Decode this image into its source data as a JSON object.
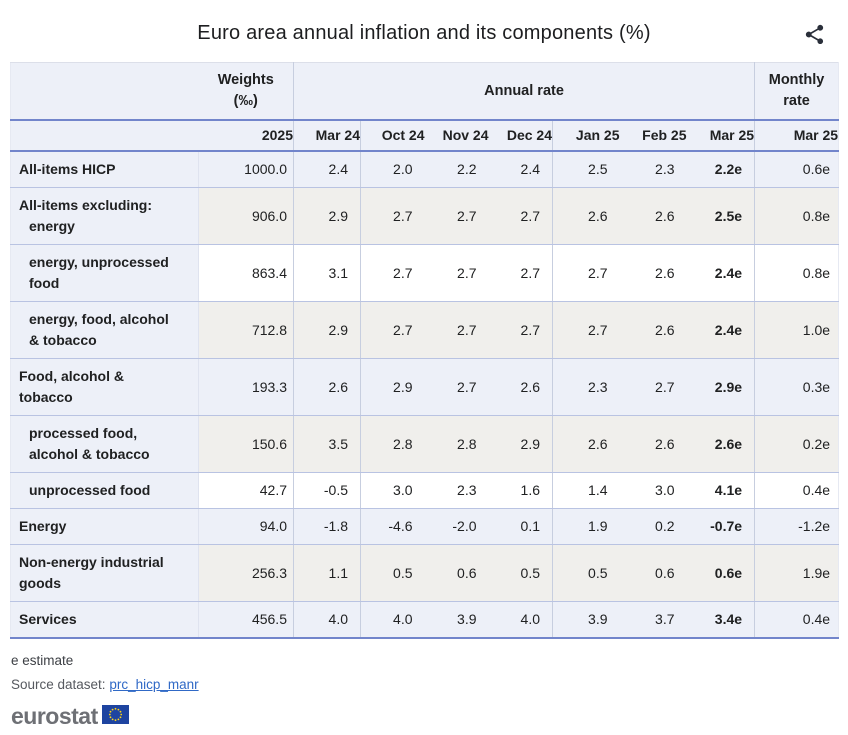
{
  "title": "Euro area annual inflation and its components (%)",
  "icons": {
    "share": "share-icon",
    "eu_flag": "eu-flag-icon"
  },
  "colors": {
    "accent_blue_border": "#7285cb",
    "row_separator": "#b9c3e2",
    "header_bg": "#edf0f8",
    "stripe_gray": "#f0efec",
    "link_blue": "#3069c6",
    "logo_gray": "#6e7075",
    "flag_blue": "#1e44a0",
    "flag_star_yellow": "#ffd617"
  },
  "table": {
    "headers": {
      "weights_line1": "Weights",
      "weights_line2": "(‰)",
      "annual": "Annual rate",
      "monthly_line1": "Monthly",
      "monthly_line2": "rate"
    }
  },
  "chart_data": {
    "type": "table",
    "title": "Euro area annual inflation and its components (%)",
    "weights_year": "2025",
    "annual_periods": [
      "Mar 24",
      "Oct 24",
      "Nov 24",
      "Dec 24",
      "Jan 25",
      "Feb 25",
      "Mar 25"
    ],
    "monthly_period": "Mar 25",
    "rows": [
      {
        "label": "All-items HICP",
        "label_lines": [
          {
            "text": "All-items HICP",
            "indent": false
          }
        ],
        "weight": "1000.0",
        "annual": [
          "2.4",
          "2.0",
          "2.2",
          "2.4",
          "2.5",
          "2.3",
          "2.2e"
        ],
        "monthly": "0.6e",
        "tone": "blue"
      },
      {
        "label": "All-items excluding: energy",
        "label_lines": [
          {
            "text": "All-items excluding:",
            "indent": false
          },
          {
            "text": "energy",
            "indent": true
          }
        ],
        "weight": "906.0",
        "annual": [
          "2.9",
          "2.7",
          "2.7",
          "2.7",
          "2.6",
          "2.6",
          "2.5e"
        ],
        "monthly": "0.8e",
        "tone": "gray"
      },
      {
        "label": "energy, unprocessed food",
        "label_lines": [
          {
            "text": "energy, unprocessed",
            "indent": true
          },
          {
            "text": "food",
            "indent": true
          }
        ],
        "weight": "863.4",
        "annual": [
          "3.1",
          "2.7",
          "2.7",
          "2.7",
          "2.7",
          "2.6",
          "2.4e"
        ],
        "monthly": "0.8e",
        "tone": "white"
      },
      {
        "label": "energy, food, alcohol & tobacco",
        "label_lines": [
          {
            "text": "energy, food, alcohol",
            "indent": true
          },
          {
            "text": "& tobacco",
            "indent": true
          }
        ],
        "weight": "712.8",
        "annual": [
          "2.9",
          "2.7",
          "2.7",
          "2.7",
          "2.7",
          "2.6",
          "2.4e"
        ],
        "monthly": "1.0e",
        "tone": "gray"
      },
      {
        "label": "Food, alcohol & tobacco",
        "label_lines": [
          {
            "text": "Food, alcohol &",
            "indent": false
          },
          {
            "text": "tobacco",
            "indent": false
          }
        ],
        "weight": "193.3",
        "annual": [
          "2.6",
          "2.9",
          "2.7",
          "2.6",
          "2.3",
          "2.7",
          "2.9e"
        ],
        "monthly": "0.3e",
        "tone": "blue"
      },
      {
        "label": "processed food, alcohol & tobacco",
        "label_lines": [
          {
            "text": "processed food,",
            "indent": true
          },
          {
            "text": "alcohol & tobacco",
            "indent": true
          }
        ],
        "weight": "150.6",
        "annual": [
          "3.5",
          "2.8",
          "2.8",
          "2.9",
          "2.6",
          "2.6",
          "2.6e"
        ],
        "monthly": "0.2e",
        "tone": "gray"
      },
      {
        "label": "unprocessed food",
        "label_lines": [
          {
            "text": "unprocessed food",
            "indent": true
          }
        ],
        "weight": "42.7",
        "annual": [
          "-0.5",
          "3.0",
          "2.3",
          "1.6",
          "1.4",
          "3.0",
          "4.1e"
        ],
        "monthly": "0.4e",
        "tone": "white"
      },
      {
        "label": "Energy",
        "label_lines": [
          {
            "text": "Energy",
            "indent": false
          }
        ],
        "weight": "94.0",
        "annual": [
          "-1.8",
          "-4.6",
          "-2.0",
          "0.1",
          "1.9",
          "0.2",
          "-0.7e"
        ],
        "monthly": "-1.2e",
        "tone": "blue"
      },
      {
        "label": "Non-energy industrial goods",
        "label_lines": [
          {
            "text": "Non-energy industrial",
            "indent": false
          },
          {
            "text": "goods",
            "indent": false
          }
        ],
        "weight": "256.3",
        "annual": [
          "1.1",
          "0.5",
          "0.6",
          "0.5",
          "0.5",
          "0.6",
          "0.6e"
        ],
        "monthly": "1.9e",
        "tone": "gray"
      },
      {
        "label": "Services",
        "label_lines": [
          {
            "text": "Services",
            "indent": false
          }
        ],
        "weight": "456.5",
        "annual": [
          "4.0",
          "4.0",
          "3.9",
          "4.0",
          "3.9",
          "3.7",
          "3.4e"
        ],
        "monthly": "0.4e",
        "tone": "blue"
      }
    ],
    "note": "e estimate"
  },
  "footnote": "e estimate",
  "source": {
    "label": "Source dataset:",
    "link": "prc_hicp_manr"
  },
  "logo": {
    "text": "eurostat"
  }
}
